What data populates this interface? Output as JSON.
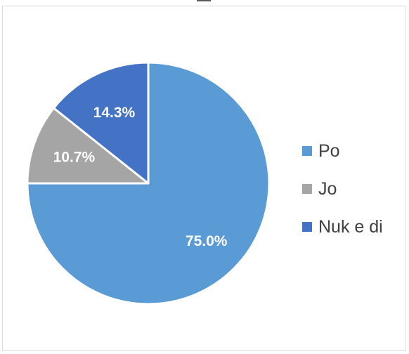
{
  "chart_data": {
    "type": "pie",
    "title": "",
    "legend_position": "right",
    "slices": [
      {
        "label": "Po",
        "value": 75.0,
        "display": "75.0%",
        "color": "#5b9bd5"
      },
      {
        "label": "Jo",
        "value": 10.7,
        "display": "10.7%",
        "color": "#a5a5a5"
      },
      {
        "label": "Nuk e di",
        "value": 14.3,
        "display": "14.3%",
        "color": "#4472c4"
      }
    ]
  }
}
